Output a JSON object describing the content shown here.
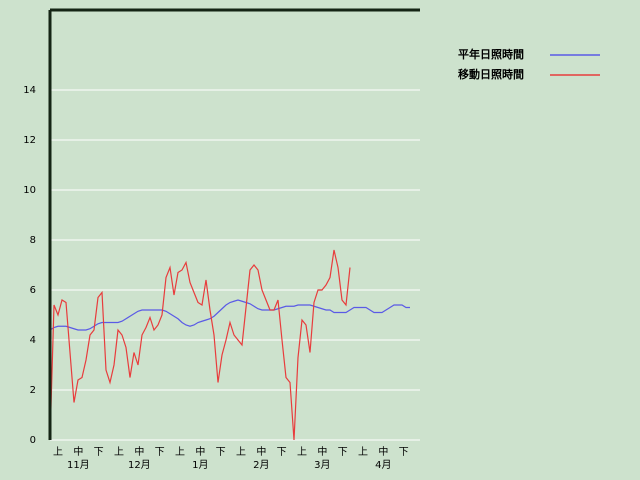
{
  "chart_data": {
    "type": "line",
    "period_labels": [
      "上",
      "中",
      "下",
      "上",
      "中",
      "下",
      "上",
      "中",
      "下",
      "上",
      "中",
      "下",
      "上",
      "中",
      "下",
      "上",
      "中",
      "下"
    ],
    "month_labels": [
      "11月",
      "12月",
      "1月",
      "2月",
      "3月",
      "4月"
    ],
    "series": [
      {
        "name": "平年日照時間",
        "color": "#5a5ae6",
        "values": [
          4.4,
          4.5,
          4.55,
          4.55,
          4.55,
          4.5,
          4.45,
          4.4,
          4.4,
          4.4,
          4.45,
          4.55,
          4.65,
          4.7,
          4.7,
          4.7,
          4.7,
          4.7,
          4.75,
          4.85,
          4.95,
          5.05,
          5.15,
          5.2,
          5.2,
          5.2,
          5.2,
          5.2,
          5.2,
          5.15,
          5.05,
          4.95,
          4.85,
          4.7,
          4.6,
          4.55,
          4.6,
          4.7,
          4.75,
          4.8,
          4.85,
          4.95,
          5.1,
          5.25,
          5.4,
          5.5,
          5.55,
          5.6,
          5.55,
          5.5,
          5.45,
          5.35,
          5.25,
          5.2,
          5.2,
          5.2,
          5.2,
          5.25,
          5.3,
          5.35,
          5.35,
          5.35,
          5.4,
          5.4,
          5.4,
          5.4,
          5.35,
          5.3,
          5.25,
          5.2,
          5.2,
          5.1,
          5.1,
          5.1,
          5.1,
          5.2,
          5.3,
          5.3,
          5.3,
          5.3,
          5.2,
          5.1,
          5.1,
          5.1,
          5.2,
          5.3,
          5.4,
          5.4,
          5.4,
          5.3,
          5.3
        ]
      },
      {
        "name": "移動日照時間",
        "color": "#e83c3c",
        "values": [
          0,
          5.4,
          5.0,
          5.6,
          5.5,
          3.5,
          1.5,
          2.4,
          2.5,
          3.2,
          4.2,
          4.4,
          5.7,
          5.9,
          2.8,
          2.3,
          3.0,
          4.4,
          4.2,
          3.7,
          2.5,
          3.5,
          3.0,
          4.2,
          4.5,
          4.9,
          4.4,
          4.6,
          5.0,
          6.5,
          6.9,
          5.8,
          6.7,
          6.8,
          7.1,
          6.3,
          5.9,
          5.5,
          5.4,
          6.4,
          5.2,
          4.2,
          2.3,
          3.4,
          4.0,
          4.7,
          4.2,
          4.0,
          3.8,
          5.3,
          6.8,
          7.0,
          6.8,
          6.0,
          5.6,
          5.2,
          5.2,
          5.6,
          4.0,
          2.5,
          2.3,
          0,
          3.3,
          4.8,
          4.6,
          3.5,
          5.5,
          6.0,
          6.0,
          6.2,
          6.5,
          7.6,
          6.9,
          5.6,
          5.4,
          6.9
        ]
      }
    ],
    "ylim": [
      0,
      17.2
    ],
    "yticks": [
      0,
      2,
      4,
      6,
      8,
      10,
      12,
      14
    ],
    "grid": true
  }
}
